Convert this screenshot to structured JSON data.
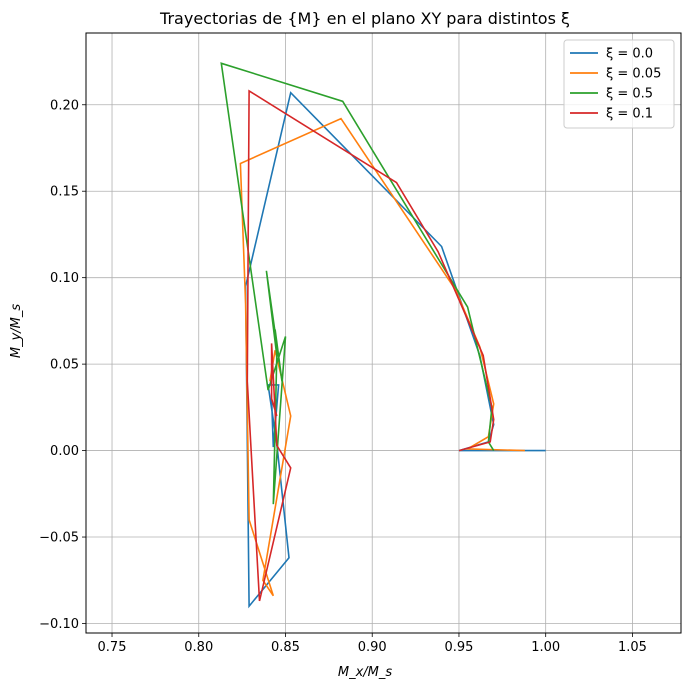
{
  "chart_data": {
    "type": "line",
    "title": "Trayectorias de {M} en el plano XY para distintos ξ",
    "xlabel": "M_x/M_s",
    "ylabel": "M_y/M_s",
    "xlim": [
      0.735,
      1.078
    ],
    "ylim": [
      -0.1055,
      0.2415
    ],
    "x_ticks": [
      0.75,
      0.8,
      0.85,
      0.9,
      0.95,
      1.0,
      1.05
    ],
    "x_tick_labels": [
      "0.75",
      "0.80",
      "0.85",
      "0.90",
      "0.95",
      "1.00",
      "1.05"
    ],
    "y_ticks": [
      -0.1,
      -0.05,
      0.0,
      0.05,
      0.1,
      0.15,
      0.2
    ],
    "y_tick_labels": [
      "−0.10",
      "−0.05",
      "0.00",
      "0.05",
      "0.10",
      "0.15",
      "0.20"
    ],
    "grid": true,
    "legend_position": "top-right",
    "series": [
      {
        "name": "ξ = 0.0",
        "color": "#1f77b4",
        "points": [
          [
            1.0,
            0.0
          ],
          [
            0.95,
            0.0
          ],
          [
            0.967,
            0.005
          ],
          [
            0.97,
            0.015
          ],
          [
            0.962,
            0.055
          ],
          [
            0.94,
            0.118
          ],
          [
            0.853,
            0.207
          ],
          [
            0.827,
            0.095
          ],
          [
            0.829,
            -0.09
          ],
          [
            0.852,
            -0.062
          ],
          [
            0.845,
            0.004
          ],
          [
            0.84,
            0.038
          ],
          [
            0.846,
            0.038
          ],
          [
            0.843,
            0.002
          ],
          [
            0.842,
            0.03
          ]
        ]
      },
      {
        "name": "ξ = 0.05",
        "color": "#ff7f0e",
        "points": [
          [
            0.988,
            0.0
          ],
          [
            0.955,
            0.001
          ],
          [
            0.967,
            0.008
          ],
          [
            0.97,
            0.027
          ],
          [
            0.962,
            0.06
          ],
          [
            0.948,
            0.093
          ],
          [
            0.882,
            0.192
          ],
          [
            0.824,
            0.166
          ],
          [
            0.827,
            0.085
          ],
          [
            0.829,
            -0.04
          ],
          [
            0.843,
            -0.084
          ],
          [
            0.837,
            -0.075
          ],
          [
            0.853,
            0.02
          ],
          [
            0.844,
            0.058
          ],
          [
            0.841,
            0.04
          ]
        ]
      },
      {
        "name": "ξ = 0.5",
        "color": "#2ca02c",
        "points": [
          [
            0.97,
            0.0
          ],
          [
            0.967,
            0.005
          ],
          [
            0.969,
            0.025
          ],
          [
            0.955,
            0.083
          ],
          [
            0.883,
            0.202
          ],
          [
            0.813,
            0.224
          ],
          [
            0.84,
            0.035
          ],
          [
            0.85,
            0.066
          ],
          [
            0.843,
            -0.031
          ],
          [
            0.845,
            0.055
          ],
          [
            0.839,
            0.104
          ],
          [
            0.848,
            0.04
          ],
          [
            0.844,
            0.07
          ]
        ]
      },
      {
        "name": "ξ = 0.1",
        "color": "#d62728",
        "points": [
          [
            0.95,
            0.0
          ],
          [
            0.968,
            0.005
          ],
          [
            0.97,
            0.018
          ],
          [
            0.964,
            0.055
          ],
          [
            0.938,
            0.115
          ],
          [
            0.914,
            0.155
          ],
          [
            0.829,
            0.208
          ],
          [
            0.828,
            0.04
          ],
          [
            0.835,
            -0.087
          ],
          [
            0.853,
            -0.01
          ],
          [
            0.845,
            0.003
          ],
          [
            0.842,
            0.062
          ],
          [
            0.842,
            0.03
          ],
          [
            0.845,
            0.02
          ]
        ]
      }
    ]
  }
}
